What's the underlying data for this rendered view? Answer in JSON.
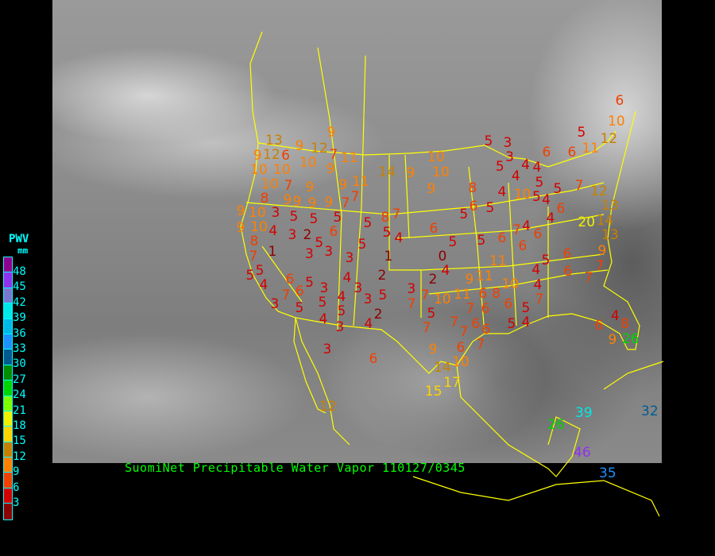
{
  "caption": "SuomiNet Precipitable Water Vapor 110127/0345",
  "legend": {
    "title": "PWV",
    "unit": "mm",
    "labels": [
      "48",
      "45",
      "42",
      "39",
      "36",
      "33",
      "30",
      "27",
      "24",
      "21",
      "18",
      "15",
      "12",
      "9",
      "6",
      "3"
    ],
    "colors": [
      "#900090",
      "#9030f0",
      "#7878d0",
      "#00e8e8",
      "#00b8e8",
      "#1e90ff",
      "#005a90",
      "#008c00",
      "#00d400",
      "#80ff00",
      "#f0f000",
      "#ffd400",
      "#c88000",
      "#ff8000",
      "#f04000",
      "#d40000",
      "#8b0000"
    ]
  },
  "map": {
    "background": "grayscale satellite image",
    "boundary_color": "#ffff00"
  },
  "stations": [
    "9",
    "13",
    "12",
    "9",
    "12",
    "7",
    "11",
    "9",
    "6",
    "10",
    "10",
    "10",
    "9",
    "14",
    "9",
    "10",
    "10",
    "10",
    "7",
    "9",
    "9",
    "9",
    "11",
    "9",
    "8",
    "9",
    "9",
    "9",
    "7",
    "7",
    "9",
    "10",
    "3",
    "5",
    "5",
    "5",
    "5",
    "8",
    "7",
    "5",
    "4",
    "6",
    "9",
    "10",
    "4",
    "3",
    "2",
    "6",
    "5",
    "3",
    "5",
    "8",
    "1",
    "3",
    "3",
    "1",
    "0",
    "4",
    "7",
    "5",
    "5",
    "4",
    "6",
    "5",
    "3",
    "4",
    "3",
    "2",
    "2",
    "3",
    "7",
    "6",
    "3",
    "5",
    "4",
    "3",
    "5",
    "7",
    "7",
    "10",
    "11",
    "5",
    "5",
    "2",
    "5",
    "4",
    "3",
    "4",
    "7",
    "7",
    "3",
    "6",
    "9",
    "15",
    "14",
    "17",
    "12",
    "9",
    "11",
    "11",
    "10",
    "6",
    "8",
    "6",
    "7",
    "6",
    "7",
    "6",
    "7",
    "6",
    "10",
    "5",
    "4",
    "6",
    "5",
    "4",
    "7",
    "5",
    "4",
    "6",
    "6",
    "7",
    "9",
    "7",
    "4",
    "8",
    "6",
    "9",
    "26",
    "39",
    "26",
    "32",
    "46",
    "35",
    "6",
    "10",
    "5",
    "12",
    "11",
    "5",
    "3",
    "3",
    "6",
    "6",
    "5",
    "4",
    "4",
    "4",
    "5",
    "5",
    "4",
    "10",
    "5",
    "7",
    "8",
    "4",
    "12",
    "13",
    "14",
    "13",
    "20",
    "6",
    "5",
    "5",
    "6",
    "4",
    "4",
    "7",
    "6",
    "6",
    "5",
    "5",
    "6"
  ]
}
